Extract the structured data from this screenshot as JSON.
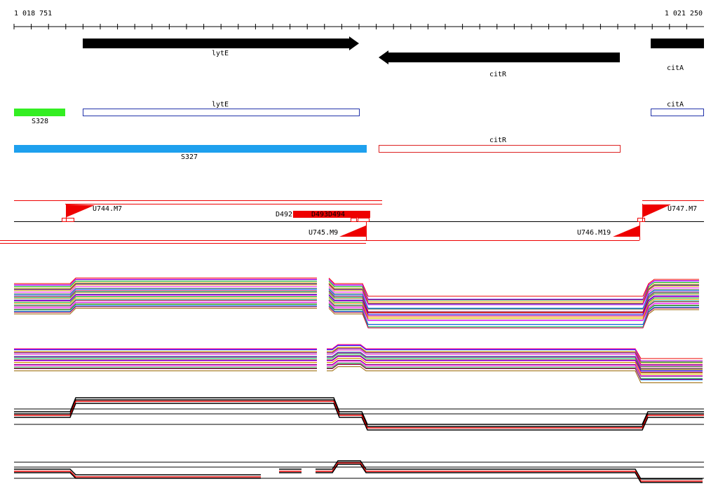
{
  "ruler": {
    "start": "1 018 751",
    "end": "1 021 250"
  },
  "genes": [
    "lytE",
    "citR",
    "citA"
  ],
  "annotations": [
    "lytE",
    "citR",
    "citA"
  ],
  "segments": [
    "S328",
    "S327"
  ],
  "features": [
    "U744.M7",
    "D492",
    "D493",
    "D494",
    "U745.M9",
    "U746.M19",
    "U747.M7"
  ]
}
